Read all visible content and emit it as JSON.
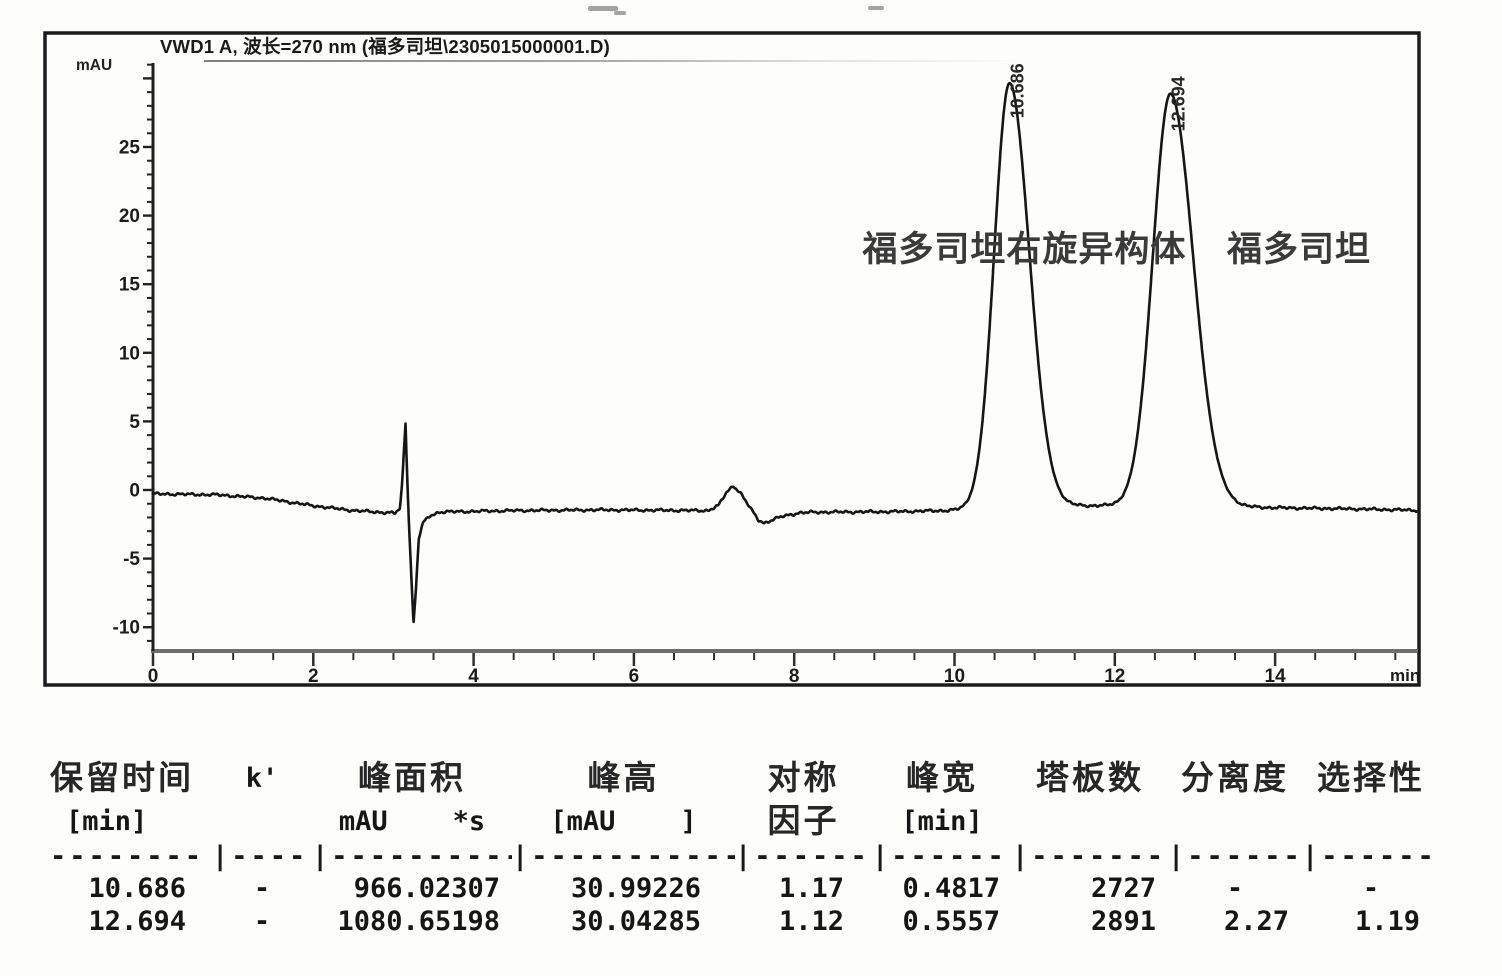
{
  "chart_data": {
    "type": "line",
    "title": "VWD1 A, 波长=270 nm (福多司坦\\2305015000001.D)",
    "xlabel": "min",
    "ylabel": "mAU",
    "xlim": [
      0,
      15.8
    ],
    "ylim": [
      -11.7,
      31.2
    ],
    "x_major_ticks": [
      0,
      2,
      4,
      6,
      8,
      10,
      12,
      14
    ],
    "x_minor_step": 0.5,
    "y_major_ticks": [
      25,
      20,
      15,
      10,
      5,
      0,
      -5,
      -10
    ],
    "y_minor_step": 1,
    "grid": false,
    "legend": "none",
    "baseline_mau": -1.5,
    "peaks": [
      {
        "label": "10.686",
        "rt_min": 10.686,
        "height_mau": 30.99226,
        "fwhm_min": 0.4817,
        "compound": "福多司坦右旋异构体"
      },
      {
        "label": "12.694",
        "rt_min": 12.694,
        "height_mau": 30.04285,
        "fwhm_min": 0.5557,
        "compound": "福多司坦"
      }
    ],
    "injection_disturbance": {
      "t_min": 3.2,
      "max_mau": 4.85,
      "min_mau": -9.85
    },
    "baseline_dip": {
      "t_min": 7.4,
      "max_mau": 0.35,
      "min_mau": -2.45
    },
    "annotations": [
      {
        "text": "福多司坦右旋异构体",
        "t_min": 8.85,
        "mau": 18
      },
      {
        "text": "福多司坦",
        "t_min": 13.4,
        "mau": 18
      }
    ]
  },
  "table": {
    "headers_line1": [
      "保留时间",
      "k'",
      "峰面积",
      "峰高",
      "对称",
      "峰宽",
      "塔板数",
      "分离度",
      "选择性"
    ],
    "headers_line2": [
      "[min]",
      "",
      "mAU    *s",
      "[mAU    ]",
      "因子",
      "[min]",
      "",
      "",
      ""
    ],
    "separator": [
      "--------",
      "|-----",
      "|----------",
      "|-----------",
      "|------",
      "|------",
      "|-------",
      "|------",
      "|------"
    ],
    "rows": [
      [
        "10.686",
        "-",
        "966.02307",
        "30.99226",
        "1.17",
        "0.4817",
        "2727",
        "-",
        "-"
      ],
      [
        "12.694",
        "-",
        "1080.65198",
        "30.04285",
        "1.12",
        "0.5557",
        "2891",
        "2.27",
        "1.19"
      ]
    ]
  }
}
